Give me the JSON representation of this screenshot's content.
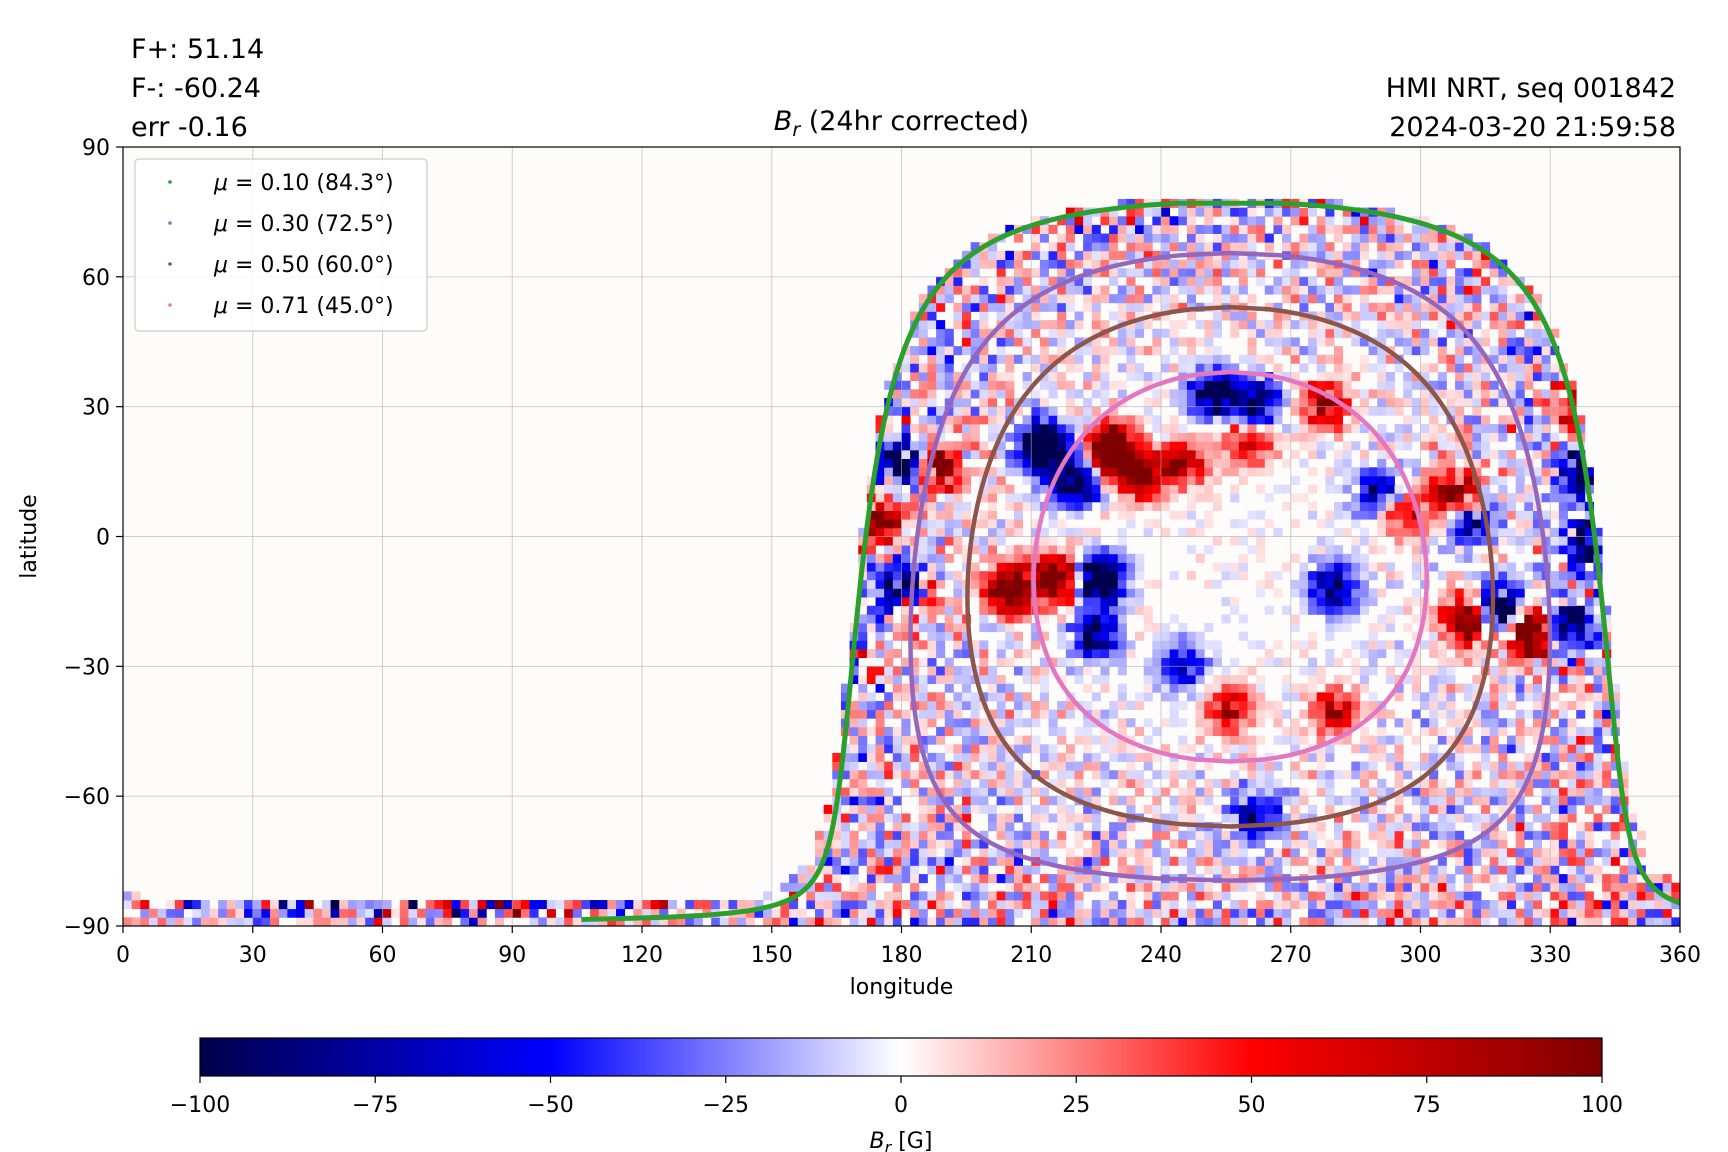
{
  "header": {
    "stats": [
      "F+: 51.14",
      "F-: -60.24",
      "err -0.16"
    ],
    "source": "HMI NRT, seq 001842",
    "timestamp": "2024-03-20 21:59:58"
  },
  "chart_data": {
    "type": "heatmap",
    "title": "B_r (24hr corrected)",
    "title_parts": {
      "symbol": "B",
      "subscript": "r",
      "rest": " (24hr corrected)"
    },
    "xlabel": "longitude",
    "ylabel": "latitude",
    "xlim": [
      0,
      360
    ],
    "ylim": [
      -90,
      90
    ],
    "xticks": [
      0,
      30,
      60,
      90,
      120,
      150,
      180,
      210,
      240,
      270,
      300,
      330,
      360
    ],
    "yticks": [
      -90,
      -60,
      -30,
      0,
      30,
      60,
      90
    ],
    "ytick_labels": [
      "−90",
      "−60",
      "−30",
      "0",
      "30",
      "60",
      "90"
    ],
    "grid": true,
    "legend_position": "top-left",
    "disk_center": {
      "lon": 256,
      "lat": -7
    },
    "series": [
      {
        "name": "μ = 0.10 (84.3°)",
        "mu_label": "0.10",
        "angle_label": "(84.3°)",
        "angle_deg": 84.3,
        "color": "#2ca02c"
      },
      {
        "name": "μ = 0.30 (72.5°)",
        "mu_label": "0.30",
        "angle_label": "(72.5°)",
        "angle_deg": 72.5,
        "color": "#9467bd"
      },
      {
        "name": "μ = 0.50 (60.0°)",
        "mu_label": "0.50",
        "angle_label": "(60.0°)",
        "angle_deg": 60.0,
        "color": "#8c564b"
      },
      {
        "name": "μ = 0.71 (45.0°)",
        "mu_label": "0.71",
        "angle_label": "(45.0°)",
        "angle_deg": 45.0,
        "color": "#e377c2"
      }
    ],
    "active_regions": [
      {
        "lon": 180,
        "lat": 17,
        "polarity": -1,
        "strength": 1.0
      },
      {
        "lon": 188,
        "lat": 16,
        "polarity": 1,
        "strength": 0.8
      },
      {
        "lon": 175,
        "lat": 4,
        "polarity": 1,
        "strength": 0.7
      },
      {
        "lon": 180,
        "lat": -12,
        "polarity": -1,
        "strength": 1.0
      },
      {
        "lon": 182,
        "lat": -15,
        "polarity": 1,
        "strength": 0.6
      },
      {
        "lon": 213,
        "lat": 21,
        "polarity": -1,
        "strength": 1.3
      },
      {
        "lon": 229,
        "lat": 20,
        "polarity": 1,
        "strength": 1.3
      },
      {
        "lon": 220,
        "lat": 13,
        "polarity": -1,
        "strength": 0.9
      },
      {
        "lon": 235,
        "lat": 14,
        "polarity": 1,
        "strength": 0.8
      },
      {
        "lon": 205,
        "lat": -12,
        "polarity": 1,
        "strength": 1.2
      },
      {
        "lon": 216,
        "lat": -10,
        "polarity": 1,
        "strength": 1.0
      },
      {
        "lon": 226,
        "lat": -10,
        "polarity": -1,
        "strength": 1.1
      },
      {
        "lon": 225,
        "lat": -23,
        "polarity": -1,
        "strength": 0.7
      },
      {
        "lon": 252,
        "lat": 33,
        "polarity": -1,
        "strength": 0.8
      },
      {
        "lon": 262,
        "lat": 31,
        "polarity": -1,
        "strength": 0.7
      },
      {
        "lon": 278,
        "lat": 30,
        "polarity": 1,
        "strength": 0.6
      },
      {
        "lon": 245,
        "lat": 17,
        "polarity": 1,
        "strength": 0.6
      },
      {
        "lon": 260,
        "lat": 22,
        "polarity": 1,
        "strength": 0.5
      },
      {
        "lon": 280,
        "lat": -12,
        "polarity": -1,
        "strength": 0.7
      },
      {
        "lon": 290,
        "lat": 10,
        "polarity": -1,
        "strength": 0.6
      },
      {
        "lon": 296,
        "lat": 5,
        "polarity": 1,
        "strength": 0.5
      },
      {
        "lon": 308,
        "lat": 10,
        "polarity": 1,
        "strength": 0.8
      },
      {
        "lon": 311,
        "lat": 3,
        "polarity": -1,
        "strength": 0.6
      },
      {
        "lon": 311,
        "lat": -19,
        "polarity": 1,
        "strength": 1.0
      },
      {
        "lon": 318,
        "lat": -17,
        "polarity": -1,
        "strength": 1.1
      },
      {
        "lon": 325,
        "lat": -22,
        "polarity": 1,
        "strength": 1.2
      },
      {
        "lon": 334,
        "lat": -20,
        "polarity": -1,
        "strength": 0.8
      },
      {
        "lon": 337,
        "lat": 14,
        "polarity": -1,
        "strength": 0.7
      },
      {
        "lon": 338,
        "lat": -2,
        "polarity": -1,
        "strength": 0.7
      },
      {
        "lon": 336,
        "lat": 31,
        "polarity": 1,
        "strength": 0.6
      },
      {
        "lon": 256,
        "lat": -40,
        "polarity": 1,
        "strength": 0.5
      },
      {
        "lon": 245,
        "lat": -30,
        "polarity": -1,
        "strength": 0.5
      },
      {
        "lon": 280,
        "lat": -40,
        "polarity": 1,
        "strength": 0.5
      },
      {
        "lon": 262,
        "lat": -65,
        "polarity": -1,
        "strength": 0.6
      }
    ]
  },
  "colorbar": {
    "label_symbol": "B",
    "label_subscript": "r",
    "label_unit": " [G]",
    "min": -100,
    "max": 100,
    "ticks": [
      -100,
      -75,
      -50,
      -25,
      0,
      25,
      50,
      75,
      100
    ],
    "tick_labels": [
      "−100",
      "−75",
      "−50",
      "−25",
      "0",
      "25",
      "50",
      "75",
      "100"
    ],
    "colors": [
      "#00004c",
      "#0000ff",
      "#ffffff",
      "#ff0000",
      "#7f0000"
    ]
  }
}
